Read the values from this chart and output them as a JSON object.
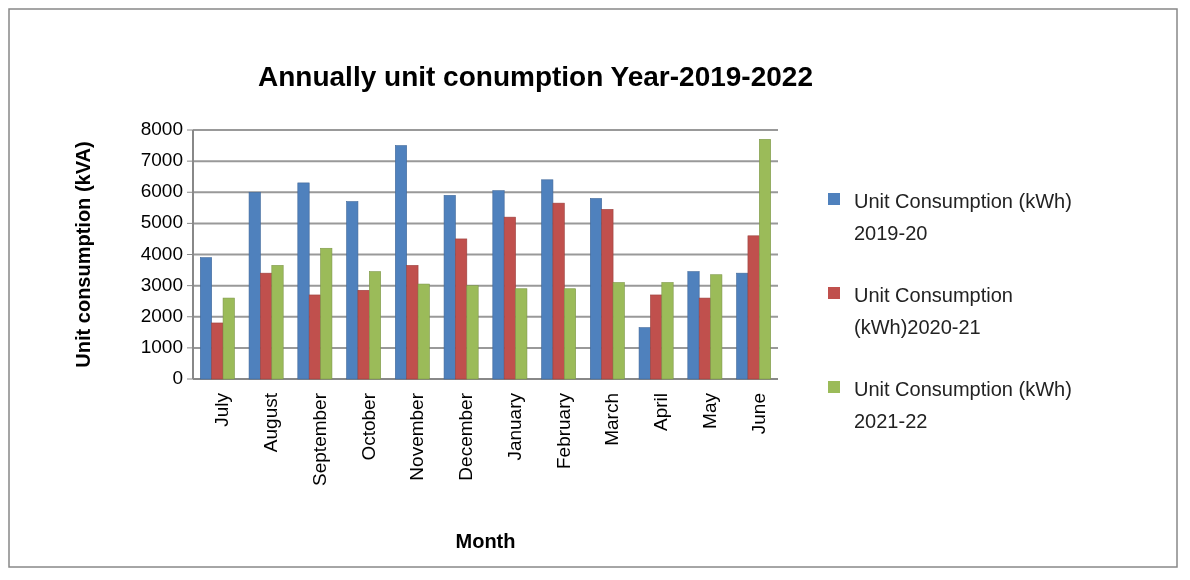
{
  "chart_data": {
    "type": "bar",
    "title": "Annually unit conumption Year-2019-2022",
    "xlabel": "Month",
    "ylabel": "Unit consumption (kVA)",
    "categories": [
      "July",
      "August",
      "September",
      "October",
      "November",
      "December",
      "January",
      "February",
      "March",
      "April",
      "May",
      "June"
    ],
    "series": [
      {
        "name": "Unit Consumption (kWh) 2019-20",
        "color": "#4f81bd",
        "values": [
          3900,
          6000,
          6300,
          5700,
          7500,
          5900,
          6050,
          6400,
          5800,
          1650,
          3450,
          3400
        ]
      },
      {
        "name": "Unit Consumption (kWh)2020-21",
        "color": "#c0504d",
        "values": [
          1800,
          3400,
          2700,
          2850,
          3650,
          4500,
          5200,
          5650,
          5450,
          2700,
          2600,
          4600
        ]
      },
      {
        "name": "Unit Consumption (kWh) 2021-22",
        "color": "#9bbb59",
        "values": [
          2600,
          3650,
          4200,
          3450,
          3050,
          3000,
          2900,
          2900,
          3100,
          3100,
          3350,
          7700
        ]
      }
    ],
    "ylim": [
      0,
      8000
    ],
    "yticks": [
      0,
      1000,
      2000,
      3000,
      4000,
      5000,
      6000,
      7000,
      8000
    ],
    "grid": true,
    "legend": "right"
  }
}
